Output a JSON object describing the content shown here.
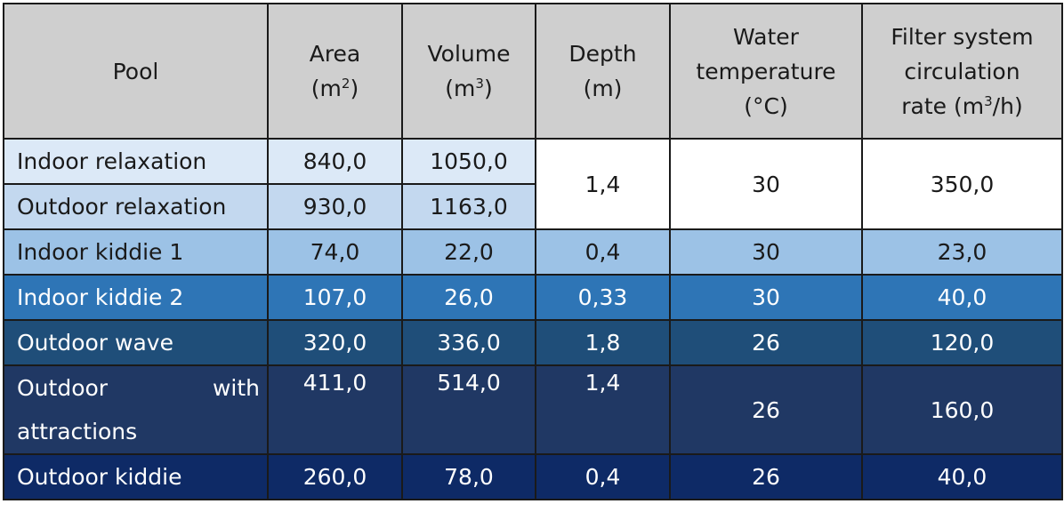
{
  "headers": {
    "pool": "Pool",
    "area": "Area",
    "area_unit_pre": "(m",
    "area_sup": "2",
    "area_unit_post": ")",
    "volume": "Volume",
    "volume_unit_pre": "(m",
    "volume_sup": "3",
    "volume_unit_post": ")",
    "depth": "Depth",
    "depth_unit": "(m)",
    "water_l1": "Water",
    "water_l2": "temperature",
    "water_l3": "(°C)",
    "filter_l1": "Filter system",
    "filter_l2": "circulation",
    "filter_l3_pre": "rate (m",
    "filter_l3_sup": "3",
    "filter_l3_post": "/h)"
  },
  "rows": {
    "indoor_relaxation": {
      "pool": "Indoor relaxation",
      "area": "840,0",
      "volume": "1050,0"
    },
    "outdoor_relaxation": {
      "pool": "Outdoor relaxation",
      "area": "930,0",
      "volume": "1163,0"
    },
    "relaxation_shared": {
      "depth": "1,4",
      "temp": "30",
      "filter": "350,0"
    },
    "indoor_kiddie_1": {
      "pool": "Indoor kiddie 1",
      "area": "74,0",
      "volume": "22,0",
      "depth": "0,4",
      "temp": "30",
      "filter": "23,0"
    },
    "indoor_kiddie_2": {
      "pool": "Indoor kiddie 2",
      "area": "107,0",
      "volume": "26,0",
      "depth": "0,33",
      "temp": "30",
      "filter": "40,0"
    },
    "outdoor_wave": {
      "pool": "Outdoor wave",
      "area": "320,0",
      "volume": "336,0",
      "depth": "1,8",
      "temp": "26",
      "filter": "120,0"
    },
    "outdoor_attractions": {
      "pool": "Outdoor with attractions",
      "area": "411,0",
      "volume": "514,0",
      "depth": "1,4",
      "temp": "26",
      "filter": "160,0"
    },
    "outdoor_kiddie": {
      "pool": "Outdoor kiddie",
      "area": "260,0",
      "volume": "78,0",
      "depth": "0,4",
      "temp": "26",
      "filter": "40,0"
    }
  }
}
